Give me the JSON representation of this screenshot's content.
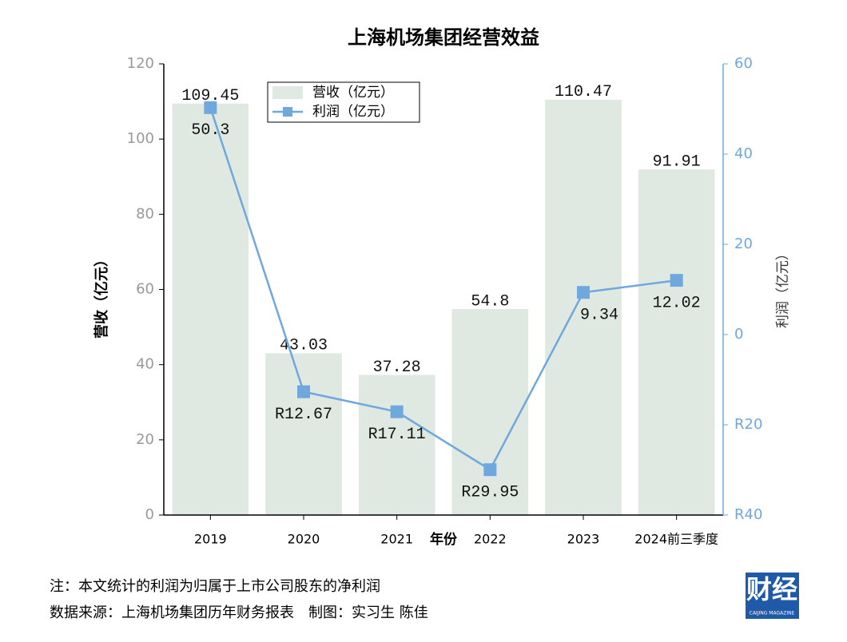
{
  "chart_data": {
    "type": "bar_line",
    "title": "上海机场集团经营效益",
    "x_label": "年份",
    "y_label": "营收（亿元）",
    "y2_label": "利润（亿元）",
    "categories": [
      "2019",
      "2020",
      "2021",
      "2022",
      "2023",
      "2024前三季度"
    ],
    "series": [
      {
        "name": "营收（亿元）",
        "type": "bar",
        "color": "#dfe9e2",
        "values": [
          109.45,
          43.03,
          37.28,
          54.8,
          110.47,
          91.91
        ]
      },
      {
        "name": "利润（亿元）",
        "type": "line",
        "axis": "y2",
        "color": "#6fa8dc",
        "values": [
          50.3,
          -12.67,
          -17.11,
          -29.95,
          9.34,
          12.02
        ],
        "value_labels": [
          "50.3",
          "R12.67",
          "R17.11",
          "R29.95",
          "9.34",
          "12.02"
        ]
      }
    ],
    "ylim": [
      0,
      120
    ],
    "yticks": [
      0,
      20,
      40,
      60,
      80,
      100,
      120
    ],
    "y2lim": [
      -40,
      60
    ],
    "y2ticks": [
      {
        "value": -40,
        "label": "R40"
      },
      {
        "value": -20,
        "label": "R20"
      },
      0,
      20,
      40,
      60
    ],
    "legend": "upper center"
  },
  "footer": {
    "note": "注：本文统计的利润为归属于上市公司股东的净利润",
    "source": "数据来源：上海机场集团历年财务报表　制图：实习生 陈佳"
  },
  "logo": {
    "text": "财经",
    "subtext": "CAIJING MAGAZINE"
  }
}
